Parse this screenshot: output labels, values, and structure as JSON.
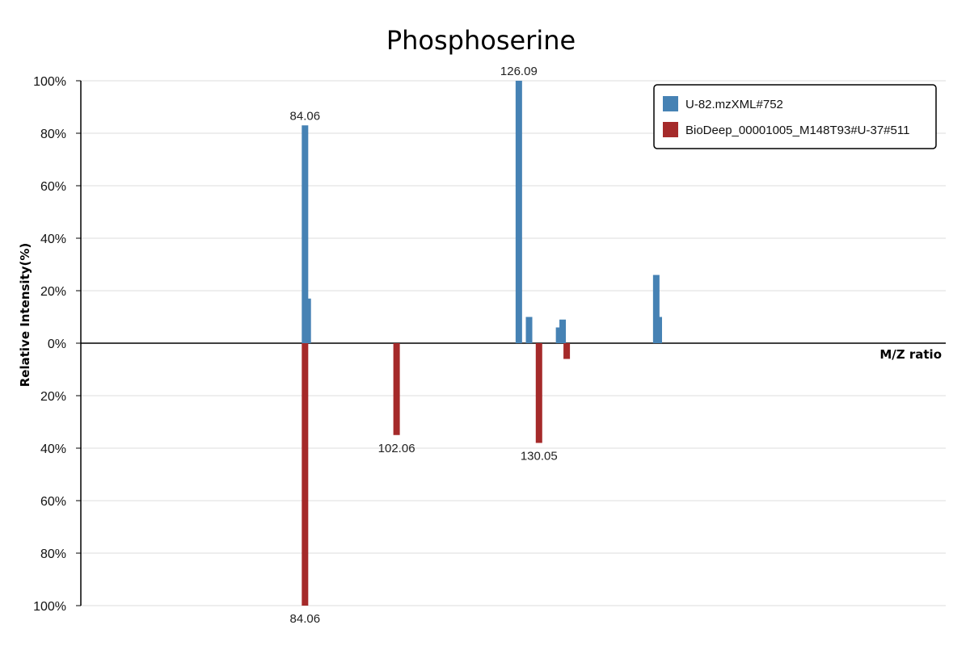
{
  "chart_data": {
    "type": "bar",
    "title": "Phosphoserine",
    "xlabel": "M/Z ratio",
    "ylabel": "Relative Intensity(%)",
    "ylim": [
      -100,
      100
    ],
    "xlim": [
      40,
      210
    ],
    "y_ticks": [
      {
        "value": 100,
        "label": "100%"
      },
      {
        "value": 80,
        "label": "80%"
      },
      {
        "value": 60,
        "label": "60%"
      },
      {
        "value": 40,
        "label": "40%"
      },
      {
        "value": 20,
        "label": "20%"
      },
      {
        "value": 0,
        "label": "0%"
      },
      {
        "value": -20,
        "label": "20%"
      },
      {
        "value": -40,
        "label": "40%"
      },
      {
        "value": -60,
        "label": "60%"
      },
      {
        "value": -80,
        "label": "80%"
      },
      {
        "value": -100,
        "label": "100%"
      }
    ],
    "grid": true,
    "legend_position": "top-right",
    "series": [
      {
        "name": "U-82.mzXML#752",
        "color": "#4682b4",
        "direction": "up",
        "points": [
          {
            "x": 84.06,
            "y": 83,
            "label": "84.06"
          },
          {
            "x": 84.6,
            "y": 17
          },
          {
            "x": 126.09,
            "y": 100,
            "label": "126.09"
          },
          {
            "x": 128.1,
            "y": 10
          },
          {
            "x": 134.0,
            "y": 6
          },
          {
            "x": 134.7,
            "y": 9
          },
          {
            "x": 153.1,
            "y": 26
          },
          {
            "x": 153.6,
            "y": 10
          }
        ]
      },
      {
        "name": "BioDeep_00001005_M148T93#U-37#511",
        "color": "#a52a2a",
        "direction": "down",
        "points": [
          {
            "x": 84.06,
            "y": 100,
            "label": "84.06"
          },
          {
            "x": 102.06,
            "y": 35,
            "label": "102.06"
          },
          {
            "x": 130.05,
            "y": 38,
            "label": "130.05"
          },
          {
            "x": 135.5,
            "y": 6
          }
        ]
      }
    ]
  }
}
